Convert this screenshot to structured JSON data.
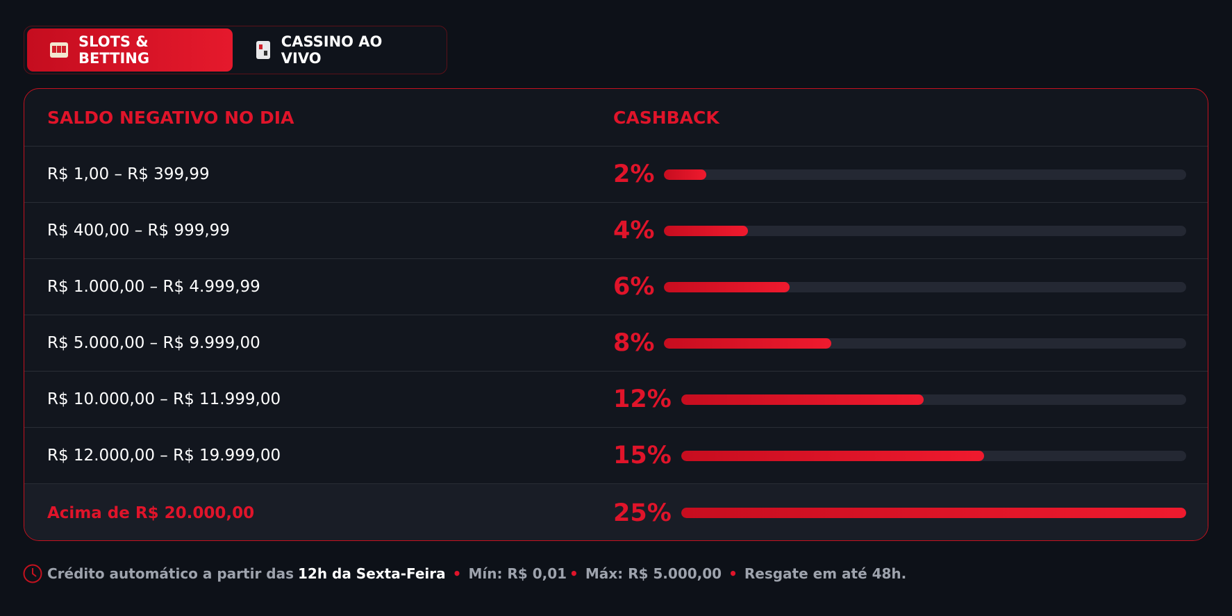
{
  "tabs": [
    "SLOTS & BETTING",
    "CASSINO AO VIVO"
  ],
  "table": {
    "headers": [
      "SALDO NEGATIVO NO DIA",
      "CASHBACK"
    ],
    "rows": [
      {
        "range": "R$ 1,00 – R$ 399,99",
        "percent": 2,
        "label": "2%"
      },
      {
        "range": "R$ 400,00 – R$ 999,99",
        "percent": 4,
        "label": "4%"
      },
      {
        "range": "R$ 1.000,00 – R$ 4.999,99",
        "percent": 6,
        "label": "6%"
      },
      {
        "range": "R$ 5.000,00 – R$ 9.999,00",
        "percent": 8,
        "label": "8%"
      },
      {
        "range": "R$ 10.000,00 – R$ 11.999,00",
        "percent": 12,
        "label": "12%"
      },
      {
        "range": "R$ 12.000,00 – R$ 19.999,00",
        "percent": 15,
        "label": "15%"
      },
      {
        "range": "Acima de R$ 20.000,00",
        "percent": 25,
        "label": "25%"
      }
    ]
  },
  "footer": {
    "intro": "Crédito automático a partir das",
    "time": "12h da Sexta-Feira",
    "min": "Mín: R$ 0,01",
    "max": "Máx: R$ 5.000,00",
    "redeem": "Resgate em até 48h."
  }
}
